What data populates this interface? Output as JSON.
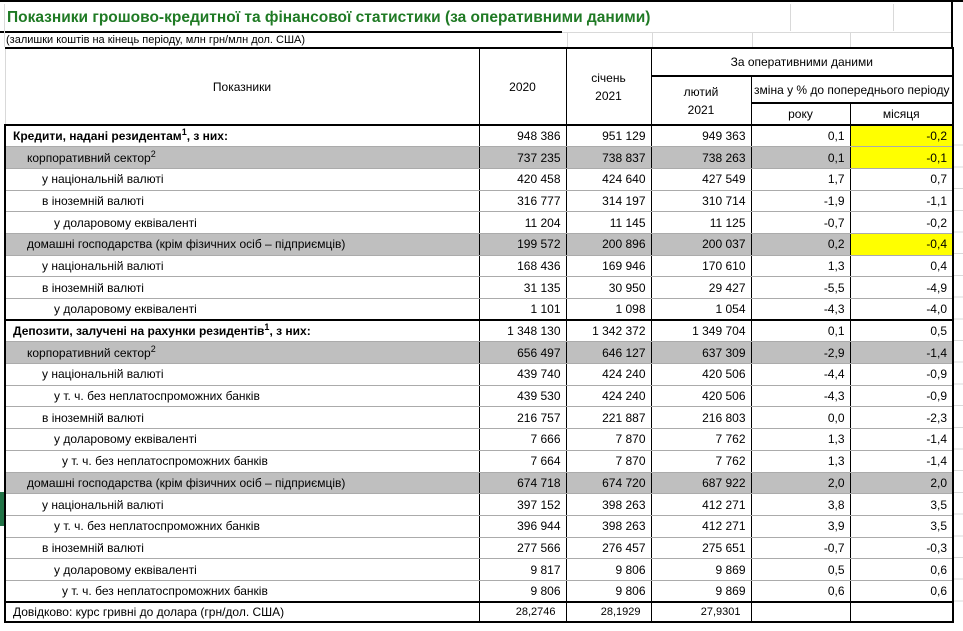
{
  "title": "Показники грошово-кредитної та фінансової статистики (за оперативними даними)",
  "subtitle": "(залишки коштів на кінець періоду, млн грн/млн дол. США)",
  "colors": {
    "title_green": "#1f7a24",
    "marker_green": "#217346",
    "highlight_yellow": "#ffff00",
    "row_gray": "#bfbfbf"
  },
  "table": {
    "header": {
      "indicators": "Показники",
      "col_2020": "2020",
      "col_jan": "січень\n2021",
      "operative_group": "За оперативними даними",
      "col_feb": "лютий\n2021",
      "change_group": "зміна у % до попереднього періоду",
      "col_year": "року",
      "col_month": "місяця"
    },
    "rows": [
      {
        "label": "Кредити, надані резидентам",
        "sup": "1",
        "suffix": ", з них:",
        "level": 0,
        "bold": true,
        "yellow_month": true,
        "values": [
          "948 386",
          "951 129",
          "949 363",
          "0,1",
          "-0,2"
        ]
      },
      {
        "label": "корпоративний сектор",
        "sup": "2",
        "level": 1,
        "gray": true,
        "yellow_month": true,
        "values": [
          "737 235",
          "738 837",
          "738 263",
          "0,1",
          "-0,1"
        ]
      },
      {
        "label": "у національній валюті",
        "level": 2,
        "values": [
          "420 458",
          "424 640",
          "427 549",
          "1,7",
          "0,7"
        ]
      },
      {
        "label": "в іноземній валюті",
        "level": 2,
        "values": [
          "316 777",
          "314 197",
          "310 714",
          "-1,9",
          "-1,1"
        ]
      },
      {
        "label": "у доларовому еквіваленті",
        "level": 3,
        "values": [
          "11 204",
          "11 145",
          "11 125",
          "-0,7",
          "-0,2"
        ]
      },
      {
        "label": "домашні господарства (крім фізичних осіб – підприємців)",
        "level": 1,
        "gray": true,
        "yellow_month": true,
        "values": [
          "199 572",
          "200 896",
          "200 037",
          "0,2",
          "-0,4"
        ]
      },
      {
        "label": "у національній валюті",
        "level": 2,
        "values": [
          "168 436",
          "169 946",
          "170 610",
          "1,3",
          "0,4"
        ]
      },
      {
        "label": "в іноземній валюті",
        "level": 2,
        "values": [
          "31 135",
          "30 950",
          "29 427",
          "-5,5",
          "-4,9"
        ]
      },
      {
        "label": "у доларовому еквіваленті",
        "level": 3,
        "values": [
          "1 101",
          "1 098",
          "1 054",
          "-4,3",
          "-4,0"
        ]
      },
      {
        "label": "Депозити, залучені на рахунки резидентів",
        "sup": "1",
        "suffix": ", з них:",
        "level": 0,
        "bold": true,
        "thick_top": true,
        "values": [
          "1 348 130",
          "1 342 372",
          "1 349 704",
          "0,1",
          "0,5"
        ]
      },
      {
        "label": "корпоративний сектор",
        "sup": "2",
        "level": 1,
        "gray": true,
        "values": [
          "656 497",
          "646 127",
          "637 309",
          "-2,9",
          "-1,4"
        ]
      },
      {
        "label": "у національній валюті",
        "level": 2,
        "values": [
          "439 740",
          "424 240",
          "420 506",
          "-4,4",
          "-0,9"
        ]
      },
      {
        "label": "у т. ч. без неплатоспроможних банків",
        "level": 3,
        "values": [
          "439 530",
          "424 240",
          "420 506",
          "-4,3",
          "-0,9"
        ]
      },
      {
        "label": "в іноземній валюті",
        "level": 2,
        "values": [
          "216 757",
          "221 887",
          "216 803",
          "0,0",
          "-2,3"
        ]
      },
      {
        "label": "у доларовому еквіваленті",
        "level": 3,
        "values": [
          "7 666",
          "7 870",
          "7 762",
          "1,3",
          "-1,4"
        ]
      },
      {
        "label": "у т. ч. без неплатоспроможних банків",
        "level": 4,
        "values": [
          "7 664",
          "7 870",
          "7 762",
          "1,3",
          "-1,4"
        ]
      },
      {
        "label": "домашні господарства (крім фізичних осіб – підприємців)",
        "level": 1,
        "gray": true,
        "values": [
          "674 718",
          "674 720",
          "687 922",
          "2,0",
          "2,0"
        ]
      },
      {
        "label": "у національній валюті",
        "level": 2,
        "values": [
          "397 152",
          "398 263",
          "412 271",
          "3,8",
          "3,5"
        ]
      },
      {
        "label": "у т. ч. без неплатоспроможних банків",
        "level": 3,
        "values": [
          "396 944",
          "398 263",
          "412 271",
          "3,9",
          "3,5"
        ]
      },
      {
        "label": "в іноземній валюті",
        "level": 2,
        "values": [
          "277 566",
          "276 457",
          "275 651",
          "-0,7",
          "-0,3"
        ]
      },
      {
        "label": "у доларовому еквіваленті",
        "level": 3,
        "values": [
          "9 817",
          "9 806",
          "9 869",
          "0,5",
          "0,6"
        ]
      },
      {
        "label": "у т. ч. без неплатоспроможних банків",
        "level": 4,
        "values": [
          "9 806",
          "9 806",
          "9 869",
          "0,6",
          "0,6"
        ]
      },
      {
        "label": "Довідково: курс гривні до долара (грн/дол. США)",
        "level": 0,
        "ref": true,
        "thick_top": true,
        "values": [
          "28,2746",
          "28,1929",
          "27,9301",
          "",
          ""
        ]
      }
    ]
  }
}
